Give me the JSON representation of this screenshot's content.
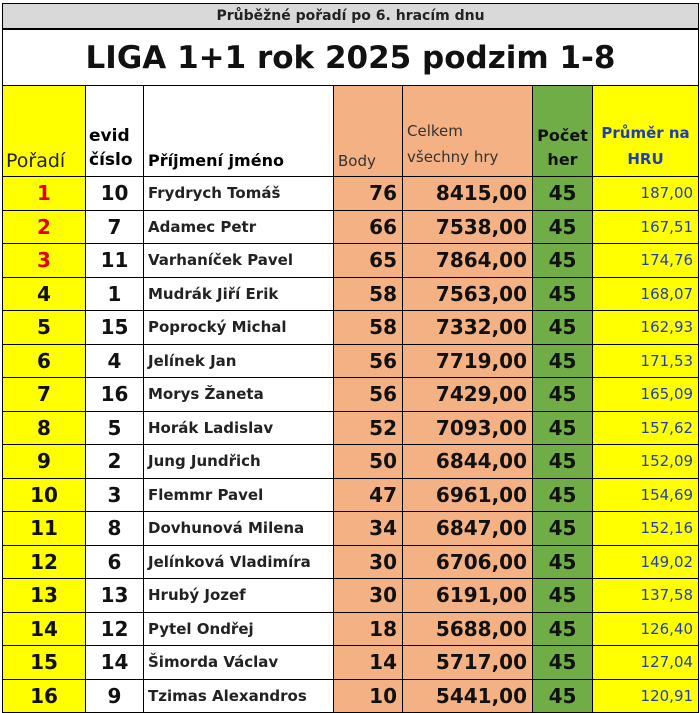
{
  "subtitle": "Průběžné pořadí po 6. hracím dnu",
  "title": "LIGA 1+1 rok 2025 podzim 1-8",
  "headers": {
    "rank": "Pořadí",
    "evid_line1": "evid",
    "evid_line2": "číslo",
    "name": "Příjmení jméno",
    "points": "Body",
    "total_line1": "Celkem",
    "total_line2": "všechny hry",
    "games_line1": "Počet",
    "games_line2": "her",
    "avg_line1": "Průměr na",
    "avg_line2": "HRU"
  },
  "colors": {
    "rank_column": "#ffff00",
    "points_column": "#f4b183",
    "games_column": "#70ad47",
    "average_text": "#1f3fb0",
    "podium_rank_text": "#e80000"
  },
  "rows": [
    {
      "rank": "1",
      "evid": "10",
      "name": "Frydrych Tomáš",
      "points": "76",
      "total": "8415,00",
      "games": "45",
      "avg": "187,00",
      "podium": true
    },
    {
      "rank": "2",
      "evid": "7",
      "name": "Adamec Petr",
      "points": "66",
      "total": "7538,00",
      "games": "45",
      "avg": "167,51",
      "podium": true
    },
    {
      "rank": "3",
      "evid": "11",
      "name": "Varhaníček Pavel",
      "points": "65",
      "total": "7864,00",
      "games": "45",
      "avg": "174,76",
      "podium": true
    },
    {
      "rank": "4",
      "evid": "1",
      "name": "Mudrák Jiří Erik",
      "points": "58",
      "total": "7563,00",
      "games": "45",
      "avg": "168,07",
      "podium": false
    },
    {
      "rank": "5",
      "evid": "15",
      "name": "Poprocký Michal",
      "points": "58",
      "total": "7332,00",
      "games": "45",
      "avg": "162,93",
      "podium": false
    },
    {
      "rank": "6",
      "evid": "4",
      "name": "Jelínek Jan",
      "points": "56",
      "total": "7719,00",
      "games": "45",
      "avg": "171,53",
      "podium": false
    },
    {
      "rank": "7",
      "evid": "16",
      "name": "Morys Žaneta",
      "points": "56",
      "total": "7429,00",
      "games": "45",
      "avg": "165,09",
      "podium": false
    },
    {
      "rank": "8",
      "evid": "5",
      "name": "Horák Ladislav",
      "points": "52",
      "total": "7093,00",
      "games": "45",
      "avg": "157,62",
      "podium": false
    },
    {
      "rank": "9",
      "evid": "2",
      "name": "Jung Jundřich",
      "points": "50",
      "total": "6844,00",
      "games": "45",
      "avg": "152,09",
      "podium": false
    },
    {
      "rank": "10",
      "evid": "3",
      "name": "Flemmr Pavel",
      "points": "47",
      "total": "6961,00",
      "games": "45",
      "avg": "154,69",
      "podium": false
    },
    {
      "rank": "11",
      "evid": "8",
      "name": "Dovhunová Milena",
      "points": "34",
      "total": "6847,00",
      "games": "45",
      "avg": "152,16",
      "podium": false
    },
    {
      "rank": "12",
      "evid": "6",
      "name": "Jelínková Vladimíra",
      "points": "30",
      "total": "6706,00",
      "games": "45",
      "avg": "149,02",
      "podium": false
    },
    {
      "rank": "13",
      "evid": "13",
      "name": "Hrubý Jozef",
      "points": "30",
      "total": "6191,00",
      "games": "45",
      "avg": "137,58",
      "podium": false
    },
    {
      "rank": "14",
      "evid": "12",
      "name": "Pytel Ondřej",
      "points": "18",
      "total": "5688,00",
      "games": "45",
      "avg": "126,40",
      "podium": false
    },
    {
      "rank": "15",
      "evid": "14",
      "name": "Šimorda Václav",
      "points": "14",
      "total": "5717,00",
      "games": "45",
      "avg": "127,04",
      "podium": false
    },
    {
      "rank": "16",
      "evid": "9",
      "name": "Tzimas Alexandros",
      "points": "10",
      "total": "5441,00",
      "games": "45",
      "avg": "120,91",
      "podium": false
    }
  ]
}
